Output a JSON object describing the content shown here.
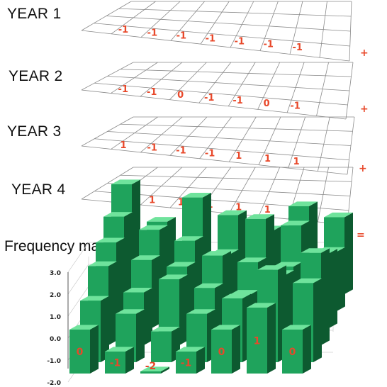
{
  "colors": {
    "grid": "#8a8a8a",
    "value": "#e8482a",
    "bar_front": "#1fa35c",
    "bar_top": "#6fe39c",
    "bar_side": "#0d5a30"
  },
  "years": [
    {
      "label": "YEAR 1",
      "values": [
        "-1",
        "-1",
        "-1",
        "-1",
        "-1",
        "-1",
        "-1"
      ],
      "operator": "+"
    },
    {
      "label": "YEAR 2",
      "values": [
        "-1",
        "-1",
        "0",
        "-1",
        "-1",
        "0",
        "-1"
      ],
      "operator": "+"
    },
    {
      "label": "YEAR 3",
      "values": [
        "1",
        "-1",
        "-1",
        "-1",
        "1",
        "1",
        "1"
      ],
      "operator": "+"
    },
    {
      "label": "YEAR 4",
      "values": [
        "1",
        "1",
        "1",
        "1",
        "1",
        "1",
        "1"
      ],
      "operator": "="
    }
  ],
  "frequency_map": {
    "title": "Frequency map",
    "axis_ticks": [
      "3.0",
      "2.0",
      "1.0",
      "0.0",
      "-1.0",
      "-2.0"
    ],
    "ylim": [
      -2,
      3
    ],
    "front_row_labels": [
      "0",
      "-1",
      "-2",
      "-1",
      "0",
      "1",
      "0"
    ],
    "rows": [
      [
        0,
        -1,
        -2,
        -1,
        0,
        1,
        0
      ],
      [
        0.8,
        0.2,
        -0.6,
        0.2,
        0.9,
        2.2,
        1.6
      ],
      [
        1.6,
        0.4,
        1.0,
        0.6,
        0.3,
        1.2,
        2.2
      ],
      [
        1.9,
        1.1,
        0.8,
        1.3,
        1.0,
        0.8,
        1.4
      ],
      [
        2.3,
        1.7,
        1.2,
        0.6,
        2.2,
        1.9,
        0.7
      ],
      [
        3.0,
        1.3,
        2.4,
        1.6,
        0.9,
        2.0,
        1.5
      ]
    ]
  }
}
